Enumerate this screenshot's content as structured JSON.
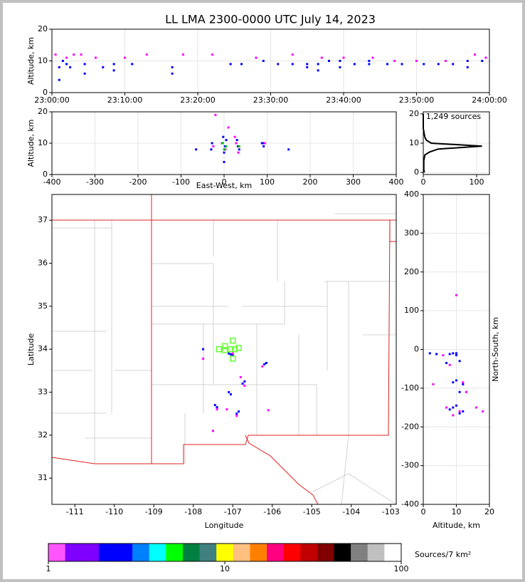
{
  "title": "LL LMA 2300-0000 UTC July 14, 2023",
  "chart_data": [
    {
      "type": "scatter",
      "ylabel": "Altitude, km",
      "xlim": [
        0,
        60
      ],
      "ylim": [
        0,
        20
      ],
      "grid": true,
      "xticks": [
        {
          "value": 0,
          "label": "23:00:00"
        },
        {
          "value": 10,
          "label": "23:10:00"
        },
        {
          "value": 20,
          "label": "23:20:00"
        },
        {
          "value": 30,
          "label": "23:30:00"
        },
        {
          "value": 40,
          "label": "23:40:00"
        },
        {
          "value": 50,
          "label": "23:50:00"
        },
        {
          "value": 60,
          "label": "24:00:00"
        }
      ],
      "yticks": [
        0,
        10,
        20
      ],
      "series": [
        {
          "color": "#0000ff",
          "x": [
            1,
            1,
            1.5,
            2,
            2.5,
            4.5,
            4.5,
            7,
            8.5,
            8.5,
            11,
            16.5,
            16.5,
            24.5,
            26,
            29,
            31,
            33,
            35,
            35,
            36.5,
            36.5,
            38,
            39.5,
            39.5,
            41.5,
            43.5,
            43.5,
            46,
            48,
            51,
            53,
            55,
            57,
            57,
            59
          ],
          "values": [
            8,
            4,
            10,
            9,
            8,
            9,
            6,
            8,
            9,
            7,
            9,
            8,
            6,
            9,
            9,
            10,
            9,
            9,
            9,
            8,
            9,
            7,
            10,
            10,
            8,
            9,
            10,
            9,
            9,
            9,
            9,
            9,
            9,
            10,
            8,
            10
          ]
        },
        {
          "color": "#ff00ff",
          "x": [
            0.5,
            2,
            3,
            4,
            6,
            10,
            13,
            18,
            22,
            28,
            33,
            37,
            40,
            44,
            47,
            50,
            54,
            58,
            59.5
          ],
          "values": [
            12,
            11,
            12,
            12,
            11,
            11,
            12,
            12,
            12,
            11,
            12,
            11,
            11,
            11,
            10,
            10,
            10,
            12,
            11
          ]
        }
      ]
    },
    {
      "type": "scatter",
      "xlabel": "East-West, km",
      "ylabel": "Altitude, km",
      "xlim": [
        -400,
        400
      ],
      "ylim": [
        0,
        20
      ],
      "grid": true,
      "xticks": [
        -400,
        -300,
        -200,
        -100,
        0,
        100,
        200,
        300,
        400
      ],
      "yticks": [
        0,
        10,
        20
      ],
      "series": [
        {
          "color": "#0000ff",
          "x": [
            -65,
            -30,
            -28,
            0,
            2,
            5,
            -2,
            0,
            30,
            32,
            35,
            90,
            92,
            88,
            150
          ],
          "values": [
            8,
            8,
            10,
            7,
            9,
            11,
            12,
            4,
            11,
            9,
            8,
            10,
            9,
            10,
            8
          ]
        },
        {
          "color": "#ff00ff",
          "x": [
            -25,
            -5,
            3,
            25,
            28,
            33,
            95,
            -20,
            10
          ],
          "values": [
            9,
            10,
            8,
            12,
            10,
            7,
            10,
            19,
            15
          ]
        },
        {
          "color": "#00c000",
          "x": [
            0,
            5,
            35,
            -3
          ],
          "values": [
            8,
            9,
            9,
            10
          ]
        }
      ]
    },
    {
      "type": "line",
      "annotation": "1,249 sources",
      "xlim": [
        0,
        124
      ],
      "ylim": [
        -0.7,
        20.7
      ],
      "grid": true,
      "xticks": [
        0,
        100
      ],
      "yticks": [
        0,
        10,
        20
      ],
      "series": [
        {
          "color": "#000000",
          "x": [
            2,
            1,
            1,
            1,
            1,
            2,
            3,
            12,
            28,
            110,
            15,
            6,
            3,
            2,
            1,
            0,
            0,
            0,
            0,
            0,
            0
          ],
          "values": [
            0,
            1,
            2,
            3,
            4,
            5,
            6,
            7,
            8,
            9,
            10,
            11,
            12,
            13,
            14,
            15,
            16,
            17,
            18,
            19,
            20
          ]
        }
      ]
    },
    {
      "type": "scatter",
      "xlabel": "Longitude",
      "ylabel": "Latitude",
      "xlim": [
        -111.58,
        -102.86
      ],
      "ylim": [
        30.39,
        37.6
      ],
      "grid": false,
      "xticks": [
        -111,
        -110,
        -109,
        -108,
        -107,
        -106,
        -105,
        -104,
        -103
      ],
      "yticks": [
        31,
        32,
        33,
        34,
        35,
        36,
        37
      ],
      "series": [
        {
          "color": "#0000ff",
          "x": [
            -107.05,
            -107.1,
            -107.0,
            -106.2,
            -106.15,
            -106.75,
            -106.7,
            -107.1,
            -107.05,
            -107.4,
            -107.45,
            -106.9,
            -106.85,
            -107.75
          ],
          "values": [
            33.88,
            33.9,
            33.86,
            33.65,
            33.68,
            33.2,
            33.25,
            33.0,
            32.95,
            32.65,
            32.7,
            32.5,
            32.55,
            34.0
          ]
        },
        {
          "color": "#ff00ff",
          "x": [
            -107.0,
            -106.8,
            -106.7,
            -107.15,
            -107.4,
            -106.9,
            -107.5,
            -106.1,
            -107.75,
            -106.25
          ],
          "values": [
            33.9,
            33.35,
            33.15,
            32.6,
            32.6,
            32.45,
            32.1,
            32.58,
            33.78,
            33.6
          ]
        },
        {
          "color": "#66ff33",
          "marker": "square-open",
          "x": [
            -107.0,
            -107.2,
            -106.85,
            -107.35,
            -107.05,
            -106.95,
            -107.0,
            -107.2
          ],
          "values": [
            34.2,
            34.07,
            34.03,
            34.0,
            34.0,
            34.0,
            33.78,
            33.98
          ]
        }
      ]
    },
    {
      "type": "scatter",
      "xlabel": "Altitude, km",
      "ylabel": "North-South, km",
      "xlim": [
        0,
        20
      ],
      "ylim": [
        -400,
        400
      ],
      "grid": true,
      "xticks": [
        0,
        10,
        20
      ],
      "yticks": [
        -400,
        -300,
        -200,
        -100,
        0,
        100,
        200,
        300,
        400
      ],
      "series": [
        {
          "color": "#0000ff",
          "x": [
            9,
            10,
            8,
            7,
            11,
            10,
            9,
            12,
            11,
            10,
            9,
            8,
            12,
            11,
            2,
            4,
            10
          ],
          "values": [
            -10,
            -10,
            -12,
            -35,
            -30,
            -80,
            -85,
            -90,
            -110,
            -145,
            -150,
            -155,
            -160,
            -165,
            -10,
            -12,
            -15
          ]
        },
        {
          "color": "#ff00ff",
          "x": [
            6,
            8,
            12,
            13,
            7,
            11,
            9,
            16,
            18,
            10,
            3
          ],
          "values": [
            -15,
            -40,
            -85,
            -110,
            -150,
            -160,
            -170,
            -150,
            -160,
            140,
            -90
          ]
        }
      ]
    },
    {
      "type": "colorbar",
      "label": "Sources/7 km²",
      "log": true,
      "xlim": [
        1,
        100
      ],
      "xticks": [
        1,
        10,
        100
      ],
      "colors": [
        "#ff55ff",
        "#8000ff",
        "#8000ff",
        "#0000ff",
        "#0000ff",
        "#0080ff",
        "#00ffff",
        "#00ff00",
        "#008040",
        "#408080",
        "#ffff00",
        "#ffc080",
        "#ff8000",
        "#ff0080",
        "#ff0000",
        "#c00000",
        "#800000",
        "#000000",
        "#808080",
        "#c0c0c0",
        "#ffffff"
      ]
    }
  ]
}
